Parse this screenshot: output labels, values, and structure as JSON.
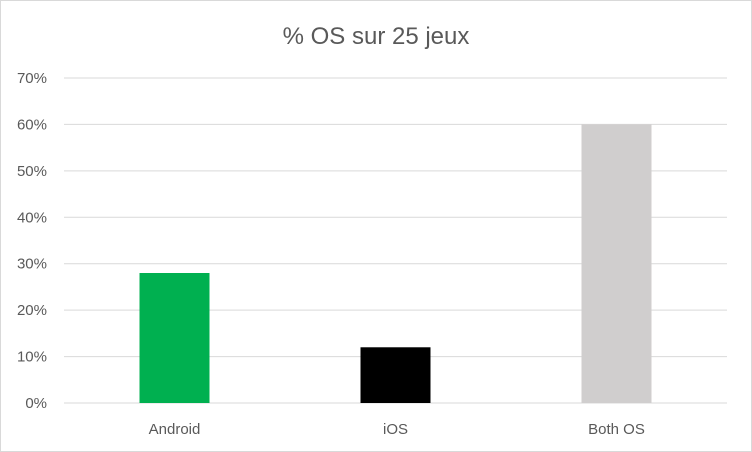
{
  "chart_data": {
    "type": "bar",
    "title": "% OS sur 25 jeux",
    "categories": [
      "Android",
      "iOS",
      "Both OS"
    ],
    "values": [
      0.28,
      0.12,
      0.6
    ],
    "colors": [
      "#00b050",
      "#000000",
      "#d0cece"
    ],
    "ylim": [
      0,
      0.7
    ],
    "yticks": [
      0,
      0.1,
      0.2,
      0.3,
      0.4,
      0.5,
      0.6,
      0.7
    ],
    "ytick_labels": [
      "0%",
      "10%",
      "20%",
      "30%",
      "40%",
      "50%",
      "60%",
      "70%"
    ],
    "grid": true,
    "xlabel": "",
    "ylabel": ""
  }
}
